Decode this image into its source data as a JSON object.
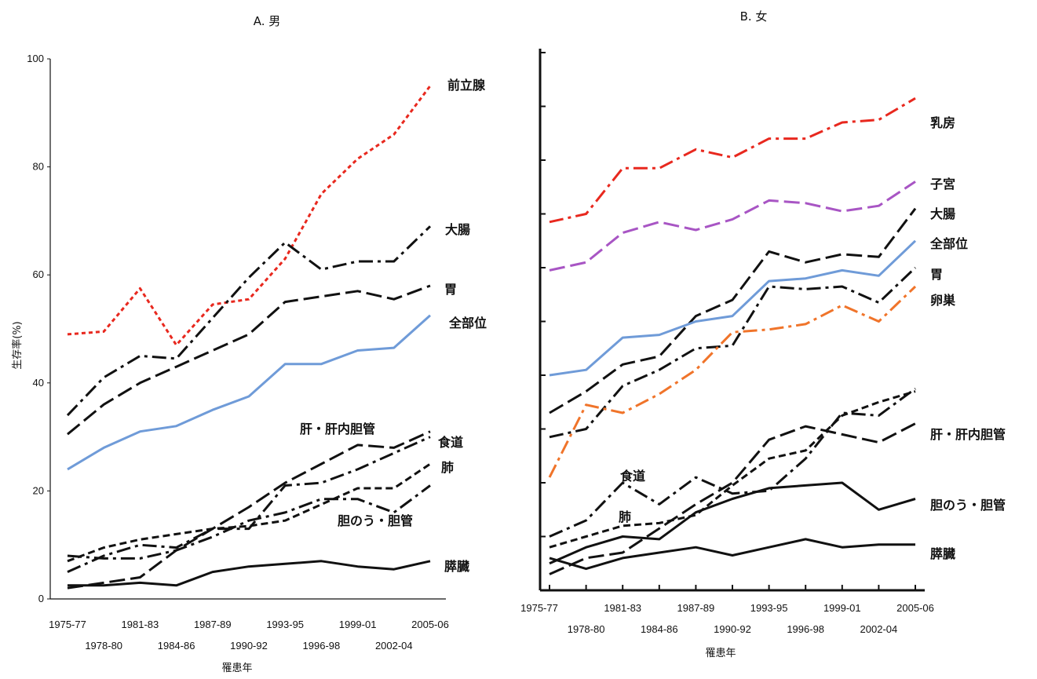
{
  "chart_data": [
    {
      "type": "line",
      "title": "A. 男",
      "xlabel": "罹患年",
      "ylabel": "生存率(%)",
      "ylim": [
        0,
        100
      ],
      "yticks": [
        "0",
        "20",
        "40",
        "60",
        "80",
        "100"
      ],
      "grid": false,
      "categories": [
        "1975-77",
        "1978-80",
        "1981-83",
        "1984-86",
        "1987-89",
        "1990-92",
        "1993-95",
        "1996-98",
        "1999-01",
        "2002-04",
        "2005-06"
      ],
      "series": [
        {
          "name": "前立腺",
          "color": "#e8281e",
          "dash": "short",
          "values": [
            49,
            49.5,
            57.5,
            47,
            54.5,
            55.5,
            63,
            75,
            81.5,
            86,
            95
          ]
        },
        {
          "name": "大腸",
          "color": "#111111",
          "dash": "dashdot",
          "values": [
            34,
            41,
            45,
            44.5,
            52,
            59.5,
            66,
            61,
            62.5,
            62.5,
            69
          ]
        },
        {
          "name": "胃",
          "color": "#111111",
          "dash": "long",
          "values": [
            30.5,
            36,
            40,
            43,
            46,
            49,
            55,
            56,
            57,
            55.5,
            58
          ]
        },
        {
          "name": "全部位",
          "color": "#6f9bd8",
          "dash": "solid",
          "values": [
            24,
            28,
            31,
            32,
            35,
            37.5,
            43.5,
            43.5,
            46,
            46.5,
            52.5
          ]
        },
        {
          "name": "肝・肝内胆管",
          "color": "#111111",
          "dash": "long",
          "values": [
            2,
            3,
            4,
            9,
            13,
            17,
            21.5,
            25,
            28.5,
            28,
            31
          ]
        },
        {
          "name": "食道",
          "color": "#111111",
          "dash": "dashdot",
          "values": [
            5,
            8,
            10,
            9.5,
            13,
            13,
            21,
            21.5,
            24,
            27,
            30
          ]
        },
        {
          "name": "肺",
          "color": "#111111",
          "dash": "medium",
          "values": [
            7,
            9.5,
            11,
            12,
            13,
            13.5,
            14.5,
            17.5,
            20.5,
            20.5,
            25
          ]
        },
        {
          "name": "胆のう・胆管",
          "color": "#111111",
          "dash": "dashdot",
          "values": [
            8,
            7.5,
            7.5,
            9,
            11.5,
            14.5,
            16,
            18.5,
            18.5,
            16,
            21
          ]
        },
        {
          "name": "膵臓",
          "color": "#111111",
          "dash": "solid",
          "values": [
            2.5,
            2.5,
            3,
            2.5,
            5,
            6,
            6.5,
            7,
            6,
            5.5,
            7
          ]
        }
      ]
    },
    {
      "type": "line",
      "title": "B. 女",
      "xlabel": "罹患年",
      "ylabel": "",
      "ylim": [
        0,
        100
      ],
      "grid": false,
      "categories": [
        "1975-77",
        "1978-80",
        "1981-83",
        "1984-86",
        "1987-89",
        "1990-92",
        "1993-95",
        "1996-98",
        "1999-01",
        "2002-04",
        "2005-06"
      ],
      "series": [
        {
          "name": "乳房",
          "color": "#e8281e",
          "dash": "dashdot",
          "values": [
            68.5,
            70,
            78.5,
            78.5,
            82,
            80.5,
            84,
            84,
            87,
            87.5,
            91.5
          ]
        },
        {
          "name": "子宮",
          "color": "#a855c4",
          "dash": "long",
          "values": [
            59.5,
            61,
            66.5,
            68.5,
            67,
            69,
            72.5,
            72,
            70.5,
            71.5,
            76
          ]
        },
        {
          "name": "大腸",
          "color": "#111111",
          "dash": "long",
          "values": [
            33,
            37,
            42,
            43.5,
            51,
            54,
            63,
            61,
            62.5,
            62,
            71
          ]
        },
        {
          "name": "全部位",
          "color": "#6f9bd8",
          "dash": "solid",
          "values": [
            40,
            41,
            47,
            47.5,
            50,
            51,
            57.5,
            58,
            59.5,
            58.5,
            65
          ]
        },
        {
          "name": "胃",
          "color": "#111111",
          "dash": "dashdot",
          "values": [
            28.5,
            30,
            38,
            41,
            45,
            45.5,
            56.5,
            56,
            56.5,
            53.5,
            60
          ]
        },
        {
          "name": "卵巣",
          "color": "#f0742a",
          "dash": "dashdot",
          "values": [
            21,
            34.5,
            33,
            36.5,
            41,
            48,
            48.5,
            49.5,
            53,
            50,
            56.5
          ]
        },
        {
          "name": "肝・肝内胆管",
          "color": "#111111",
          "dash": "long",
          "values": [
            3,
            6,
            7,
            11.5,
            16,
            20,
            28,
            30.5,
            29,
            27.5,
            31
          ]
        },
        {
          "name": "食道",
          "color": "#111111",
          "dash": "dashdot",
          "values": [
            10,
            13,
            20,
            16,
            21,
            18,
            18.5,
            24.5,
            33,
            32.5,
            37.5
          ]
        },
        {
          "name": "肺",
          "color": "#111111",
          "dash": "medium",
          "values": [
            8,
            10,
            12,
            12.5,
            14,
            19.5,
            24.5,
            26,
            32.5,
            35,
            37
          ]
        },
        {
          "name": "胆のう・胆管",
          "color": "#111111",
          "dash": "solid",
          "values": [
            5,
            8,
            10,
            9.5,
            14.5,
            17,
            19,
            19.5,
            20,
            15,
            17
          ]
        },
        {
          "name": "膵臓",
          "color": "#111111",
          "dash": "solid",
          "values": [
            6,
            4,
            6,
            7,
            8,
            6.5,
            8,
            9.5,
            8,
            8.5,
            8.5
          ]
        }
      ]
    }
  ]
}
